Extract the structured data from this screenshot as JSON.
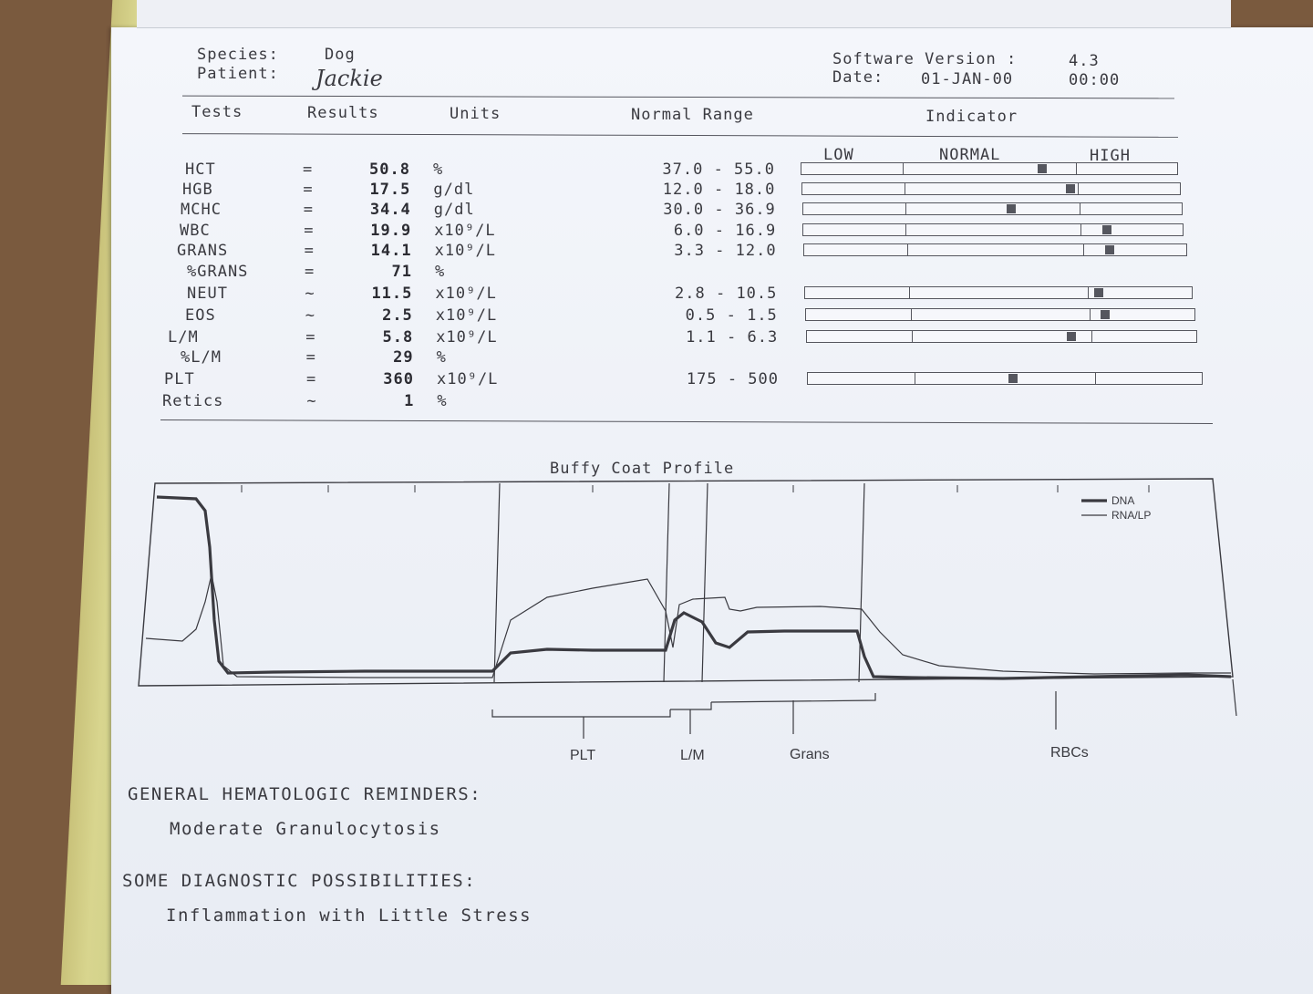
{
  "header": {
    "species_label": "Species:",
    "species_value": "Dog",
    "patient_label": "Patient:",
    "patient_value": "Jackie",
    "software_label": "Software Version :",
    "software_value": "4.3",
    "date_label": "Date:",
    "date_value": "01-JAN-00",
    "time_value": "00:00"
  },
  "columns": {
    "tests": "Tests",
    "results": "Results",
    "units": "Units",
    "normal_range": "Normal Range",
    "indicator": "Indicator"
  },
  "indicator_labels": {
    "low": "LOW",
    "normal": "NORMAL",
    "high": "HIGH"
  },
  "tests": [
    {
      "name": "HCT",
      "op": "=",
      "result": "50.8",
      "unit": "%",
      "range": "37.0 - 55.0",
      "marker": 0.64
    },
    {
      "name": "HGB",
      "op": "=",
      "result": "17.5",
      "unit": "g/dl",
      "range": "12.0 - 18.0",
      "marker": 0.71
    },
    {
      "name": "MCHC",
      "op": "=",
      "result": "34.4",
      "unit": "g/dl",
      "range": "30.0 - 36.9",
      "marker": 0.55
    },
    {
      "name": "WBC",
      "op": "=",
      "result": "19.9",
      "unit": "x10⁹/L",
      "range": "6.0 - 16.9",
      "marker": 0.8
    },
    {
      "name": "GRANS",
      "op": "=",
      "result": "14.1",
      "unit": "x10⁹/L",
      "range": "3.3 - 12.0",
      "marker": 0.8
    },
    {
      "name": "%GRANS",
      "op": "=",
      "result": "71",
      "unit": "%",
      "range": "",
      "marker": null
    },
    {
      "name": "NEUT",
      "op": "~",
      "result": "11.5",
      "unit": "x10⁹/L",
      "range": "2.8 - 10.5",
      "marker": 0.76
    },
    {
      "name": "EOS",
      "op": "~",
      "result": "2.5",
      "unit": "x10⁹/L",
      "range": "0.5 - 1.5",
      "marker": 0.77
    },
    {
      "name": "L/M",
      "op": "=",
      "result": "5.8",
      "unit": "x10⁹/L",
      "range": "1.1 - 6.3",
      "marker": 0.68
    },
    {
      "name": "%L/M",
      "op": "=",
      "result": "29",
      "unit": "%",
      "range": "",
      "marker": null
    },
    {
      "name": "PLT",
      "op": "=",
      "result": "360",
      "unit": "x10⁹/L",
      "range": "175 - 500",
      "marker": 0.52
    },
    {
      "name": "Retics",
      "op": "~",
      "result": "1",
      "unit": "%",
      "range": "",
      "marker": null
    }
  ],
  "chart_data": {
    "type": "line",
    "title": "Buffy Coat Profile",
    "xlabel": "",
    "ylabel": "",
    "legend_position": "top-right",
    "regions": [
      "PLT",
      "L/M",
      "Grans",
      "RBCs"
    ],
    "series": [
      {
        "name": "DNA",
        "style": "thick"
      },
      {
        "name": "RNA/LP",
        "style": "thin"
      }
    ]
  },
  "reminders": {
    "heading": "GENERAL HEMATOLOGIC REMINDERS:",
    "text": "Moderate Granulocytosis"
  },
  "diagnostic": {
    "heading": "SOME DIAGNOSTIC POSSIBILITIES:",
    "text": "Inflammation with Little Stress"
  },
  "colors": {
    "ink": "#3a3a40",
    "paper": "#eef1f7",
    "binding": "#d2d088",
    "desk": "#7a5a3e"
  }
}
